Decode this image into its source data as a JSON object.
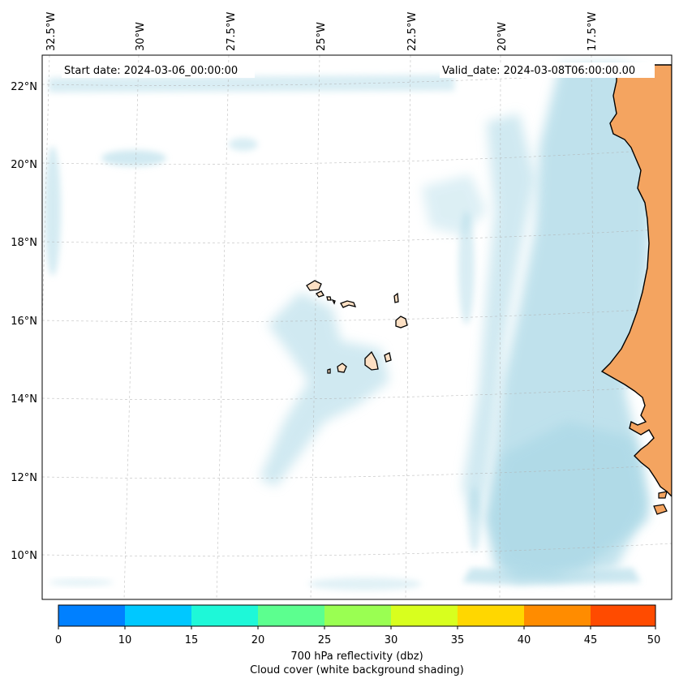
{
  "start_date": "Start date: 2024-03-06_00:00:00",
  "valid_date": "Valid_date: 2024-03-08T06:00:00.00",
  "longitude_labels": [
    "32.5°W",
    "30°W",
    "27.5°W",
    "25°W",
    "22.5°W",
    "20°W",
    "17.5°W"
  ],
  "latitude_labels": [
    "22°N",
    "20°N",
    "18°N",
    "16°N",
    "14°N",
    "12°N",
    "10°N"
  ],
  "colorbar": {
    "ticks": [
      "0",
      "10",
      "15",
      "20",
      "25",
      "30",
      "35",
      "40",
      "45",
      "50"
    ],
    "colors": [
      "#0080ff",
      "#00c8ff",
      "#1ef8d8",
      "#5cff8f",
      "#9aff52",
      "#d8ff1e",
      "#ffd700",
      "#ff8c00",
      "#ff4b00"
    ],
    "label_line1": "700 hPa reflectivity (dbz)",
    "label_line2": "Cloud cover (white background shading)"
  },
  "colors": {
    "land_mainland": "#f4a460",
    "land_islands": "#fde0c4",
    "cloud": "#aad8e6",
    "grid": "#b0b0b0",
    "coast": "#000000"
  }
}
